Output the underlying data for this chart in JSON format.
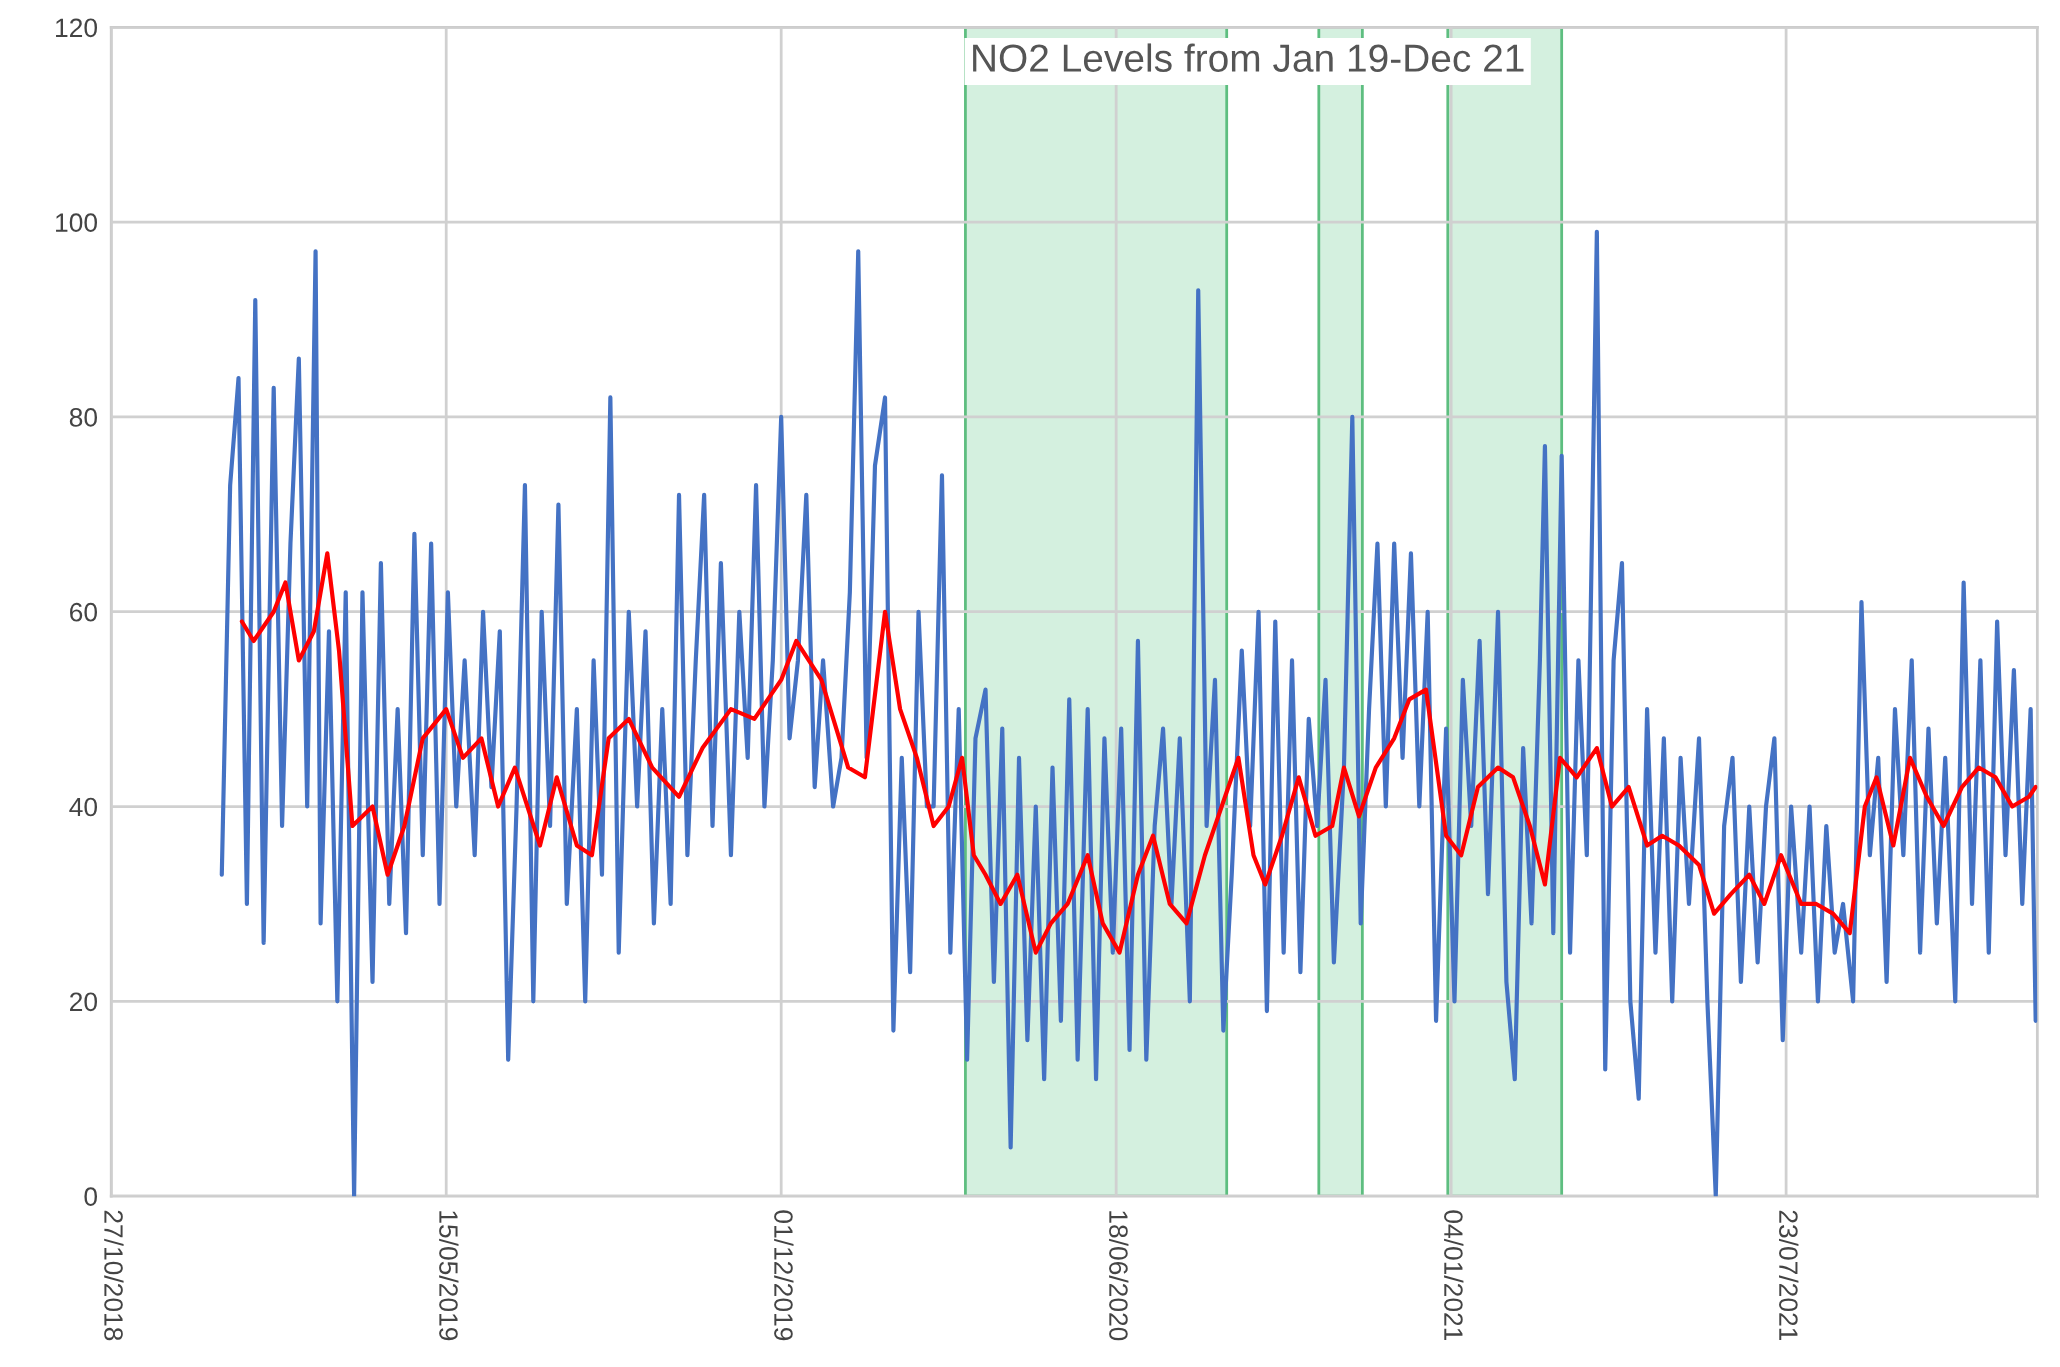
{
  "chart_data": {
    "type": "line",
    "title": "NO2 Levels from Jan 19-Dec 21",
    "xlim": [
      "2018-10-27",
      "2021-12-20"
    ],
    "xticks": [
      {
        "value": "2018-10-27",
        "label": "27/10/2018"
      },
      {
        "value": "2019-05-15",
        "label": "15/05/2019"
      },
      {
        "value": "2019-12-01",
        "label": "01/12/2019"
      },
      {
        "value": "2020-06-18",
        "label": "18/06/2020"
      },
      {
        "value": "2021-01-04",
        "label": "04/01/2021"
      },
      {
        "value": "2021-07-23",
        "label": "23/07/2021"
      }
    ],
    "ylim": [
      0,
      120
    ],
    "yticks": [
      0,
      20,
      40,
      60,
      80,
      100,
      120
    ],
    "grid": true,
    "legend": false,
    "bands": [
      {
        "axis": "x",
        "from": "2020-03-20",
        "to": "2020-08-23",
        "color": "#c2ead2"
      },
      {
        "axis": "x",
        "from": "2020-10-17",
        "to": "2020-11-12",
        "color": "#c2ead2"
      },
      {
        "axis": "x",
        "from": "2021-01-02",
        "to": "2021-03-11",
        "color": "#c2ead2"
      }
    ],
    "series": [
      {
        "color": "#4472c4",
        "x": [
          "2019-01-01",
          "2019-01-06",
          "2019-01-11",
          "2019-01-16",
          "2019-01-21",
          "2019-01-26",
          "2019-02-01",
          "2019-02-06",
          "2019-02-11",
          "2019-02-16",
          "2019-02-21",
          "2019-02-26",
          "2019-03-01",
          "2019-03-06",
          "2019-03-11",
          "2019-03-16",
          "2019-03-21",
          "2019-03-26",
          "2019-04-01",
          "2019-04-06",
          "2019-04-11",
          "2019-04-16",
          "2019-04-21",
          "2019-04-26",
          "2019-05-01",
          "2019-05-06",
          "2019-05-11",
          "2019-05-16",
          "2019-05-21",
          "2019-05-26",
          "2019-06-01",
          "2019-06-06",
          "2019-06-11",
          "2019-06-16",
          "2019-06-21",
          "2019-06-26",
          "2019-07-01",
          "2019-07-06",
          "2019-07-11",
          "2019-07-16",
          "2019-07-21",
          "2019-07-26",
          "2019-08-01",
          "2019-08-06",
          "2019-08-11",
          "2019-08-16",
          "2019-08-21",
          "2019-08-26",
          "2019-09-01",
          "2019-09-06",
          "2019-09-11",
          "2019-09-16",
          "2019-09-21",
          "2019-09-26",
          "2019-10-01",
          "2019-10-06",
          "2019-10-11",
          "2019-10-16",
          "2019-10-21",
          "2019-10-26",
          "2019-11-01",
          "2019-11-06",
          "2019-11-11",
          "2019-11-16",
          "2019-11-21",
          "2019-11-26",
          "2019-12-01",
          "2019-12-06",
          "2019-12-11",
          "2019-12-16",
          "2019-12-21",
          "2019-12-26",
          "2020-01-01",
          "2020-01-06",
          "2020-01-11",
          "2020-01-16",
          "2020-01-21",
          "2020-01-26",
          "2020-02-01",
          "2020-02-06",
          "2020-02-11",
          "2020-02-16",
          "2020-02-21",
          "2020-02-26",
          "2020-03-01",
          "2020-03-06",
          "2020-03-11",
          "2020-03-16",
          "2020-03-21",
          "2020-03-26",
          "2020-04-01",
          "2020-04-06",
          "2020-04-11",
          "2020-04-16",
          "2020-04-21",
          "2020-04-26",
          "2020-05-01",
          "2020-05-06",
          "2020-05-11",
          "2020-05-16",
          "2020-05-21",
          "2020-05-26",
          "2020-06-01",
          "2020-06-06",
          "2020-06-11",
          "2020-06-16",
          "2020-06-21",
          "2020-06-26",
          "2020-07-01",
          "2020-07-06",
          "2020-07-11",
          "2020-07-16",
          "2020-07-21",
          "2020-07-26",
          "2020-08-01",
          "2020-08-06",
          "2020-08-11",
          "2020-08-16",
          "2020-08-21",
          "2020-08-26",
          "2020-09-01",
          "2020-09-06",
          "2020-09-11",
          "2020-09-16",
          "2020-09-21",
          "2020-09-26",
          "2020-10-01",
          "2020-10-06",
          "2020-10-11",
          "2020-10-16",
          "2020-10-21",
          "2020-10-26",
          "2020-11-01",
          "2020-11-06",
          "2020-11-11",
          "2020-11-16",
          "2020-11-21",
          "2020-11-26",
          "2020-12-01",
          "2020-12-06",
          "2020-12-11",
          "2020-12-16",
          "2020-12-21",
          "2020-12-26",
          "2021-01-01",
          "2021-01-06",
          "2021-01-11",
          "2021-01-16",
          "2021-01-21",
          "2021-01-26",
          "2021-02-01",
          "2021-02-06",
          "2021-02-11",
          "2021-02-16",
          "2021-02-21",
          "2021-02-26",
          "2021-03-01",
          "2021-03-06",
          "2021-03-11",
          "2021-03-16",
          "2021-03-21",
          "2021-03-26",
          "2021-04-01",
          "2021-04-06",
          "2021-04-11",
          "2021-04-16",
          "2021-04-21",
          "2021-04-26",
          "2021-05-01",
          "2021-05-06",
          "2021-05-11",
          "2021-05-16",
          "2021-05-21",
          "2021-05-26",
          "2021-06-01",
          "2021-06-06",
          "2021-06-11",
          "2021-06-16",
          "2021-06-21",
          "2021-06-26",
          "2021-07-01",
          "2021-07-06",
          "2021-07-11",
          "2021-07-16",
          "2021-07-21",
          "2021-07-26",
          "2021-08-01",
          "2021-08-06",
          "2021-08-11",
          "2021-08-16",
          "2021-08-21",
          "2021-08-26",
          "2021-09-01",
          "2021-09-06",
          "2021-09-11",
          "2021-09-16",
          "2021-09-21",
          "2021-09-26",
          "2021-10-01",
          "2021-10-06",
          "2021-10-11",
          "2021-10-16",
          "2021-10-21",
          "2021-10-26",
          "2021-11-01",
          "2021-11-06",
          "2021-11-11",
          "2021-11-16",
          "2021-11-21",
          "2021-11-26",
          "2021-12-01",
          "2021-12-06",
          "2021-12-11",
          "2021-12-16",
          "2021-12-19"
        ],
        "values": [
          33,
          73,
          84,
          30,
          92,
          26,
          83,
          38,
          67,
          86,
          40,
          97,
          28,
          58,
          20,
          62,
          0,
          62,
          22,
          65,
          30,
          50,
          27,
          68,
          35,
          67,
          30,
          62,
          40,
          55,
          35,
          60,
          42,
          58,
          14,
          40,
          73,
          20,
          60,
          38,
          71,
          30,
          50,
          20,
          55,
          33,
          82,
          25,
          60,
          40,
          58,
          28,
          50,
          30,
          72,
          35,
          55,
          72,
          38,
          65,
          35,
          60,
          45,
          73,
          40,
          55,
          80,
          47,
          55,
          72,
          42,
          55,
          40,
          45,
          62,
          97,
          45,
          75,
          82,
          17,
          45,
          23,
          60,
          40,
          40,
          74,
          25,
          50,
          14,
          47,
          52,
          22,
          48,
          5,
          45,
          16,
          40,
          12,
          44,
          18,
          51,
          14,
          50,
          12,
          47,
          25,
          48,
          15,
          57,
          14,
          38,
          48,
          30,
          47,
          20,
          93,
          38,
          53,
          17,
          33,
          56,
          38,
          60,
          19,
          59,
          25,
          55,
          23,
          49,
          38,
          53,
          24,
          44,
          80,
          28,
          50,
          67,
          40,
          67,
          45,
          66,
          40,
          60,
          18,
          48,
          20,
          53,
          38,
          57,
          31,
          60,
          22,
          12,
          46,
          28,
          55,
          77,
          27,
          76,
          25,
          55,
          35,
          99,
          13,
          55,
          65,
          20,
          10,
          50,
          25,
          47,
          20,
          45,
          30,
          47,
          20,
          0,
          38,
          45,
          22,
          40,
          24,
          40,
          47,
          16,
          40,
          25,
          40,
          20,
          38,
          25,
          30,
          20,
          61,
          35,
          45,
          22,
          50,
          35,
          55,
          25,
          48,
          28,
          45,
          20,
          63,
          30,
          55,
          25,
          59,
          35,
          54,
          30,
          50,
          18
        ]
      },
      {
        "color": "#ff0000",
        "x": [
          "2019-01-13",
          "2019-01-20",
          "2019-02-01",
          "2019-02-08",
          "2019-02-16",
          "2019-02-25",
          "2019-03-05",
          "2019-03-12",
          "2019-03-20",
          "2019-04-01",
          "2019-04-10",
          "2019-04-20",
          "2019-05-01",
          "2019-05-15",
          "2019-05-25",
          "2019-06-05",
          "2019-06-15",
          "2019-06-25",
          "2019-07-10",
          "2019-07-20",
          "2019-08-01",
          "2019-08-10",
          "2019-08-20",
          "2019-09-01",
          "2019-09-15",
          "2019-10-01",
          "2019-10-15",
          "2019-11-01",
          "2019-11-15",
          "2019-12-01",
          "2019-12-10",
          "2019-12-25",
          "2020-01-10",
          "2020-01-20",
          "2020-02-01",
          "2020-02-10",
          "2020-02-20",
          "2020-03-01",
          "2020-03-10",
          "2020-03-18",
          "2020-03-25",
          "2020-04-01",
          "2020-04-10",
          "2020-04-20",
          "2020-05-01",
          "2020-05-10",
          "2020-05-20",
          "2020-06-01",
          "2020-06-10",
          "2020-06-20",
          "2020-07-01",
          "2020-07-10",
          "2020-07-20",
          "2020-07-30",
          "2020-08-10",
          "2020-08-20",
          "2020-08-30",
          "2020-09-08",
          "2020-09-15",
          "2020-09-25",
          "2020-10-05",
          "2020-10-15",
          "2020-10-25",
          "2020-11-01",
          "2020-11-10",
          "2020-11-20",
          "2020-12-01",
          "2020-12-10",
          "2020-12-20",
          "2021-01-01",
          "2021-01-10",
          "2021-01-20",
          "2021-02-01",
          "2021-02-10",
          "2021-02-20",
          "2021-03-01",
          "2021-03-10",
          "2021-03-20",
          "2021-04-01",
          "2021-04-10",
          "2021-04-20",
          "2021-05-01",
          "2021-05-10",
          "2021-05-20",
          "2021-06-01",
          "2021-06-10",
          "2021-06-20",
          "2021-07-01",
          "2021-07-10",
          "2021-07-20",
          "2021-08-01",
          "2021-08-10",
          "2021-08-20",
          "2021-08-30",
          "2021-09-08",
          "2021-09-15",
          "2021-09-25",
          "2021-10-05",
          "2021-10-15",
          "2021-10-25",
          "2021-11-05",
          "2021-11-15",
          "2021-11-25",
          "2021-12-05",
          "2021-12-15",
          "2021-12-19"
        ],
        "values": [
          59,
          57,
          60,
          63,
          55,
          58,
          66,
          56,
          38,
          40,
          33,
          38,
          47,
          50,
          45,
          47,
          40,
          44,
          36,
          43,
          36,
          35,
          47,
          49,
          44,
          41,
          46,
          50,
          49,
          53,
          57,
          53,
          44,
          43,
          60,
          50,
          45,
          38,
          40,
          45,
          35,
          33,
          30,
          33,
          25,
          28,
          30,
          35,
          28,
          25,
          33,
          37,
          30,
          28,
          35,
          40,
          45,
          35,
          32,
          37,
          43,
          37,
          38,
          44,
          39,
          44,
          47,
          51,
          52,
          37,
          35,
          42,
          44,
          43,
          38,
          32,
          45,
          43,
          46,
          40,
          42,
          36,
          37,
          36,
          34,
          29,
          31,
          33,
          30,
          35,
          30,
          30,
          29,
          27,
          40,
          43,
          36,
          45,
          41,
          38,
          42,
          44,
          43,
          40,
          41,
          42
        ]
      }
    ]
  }
}
